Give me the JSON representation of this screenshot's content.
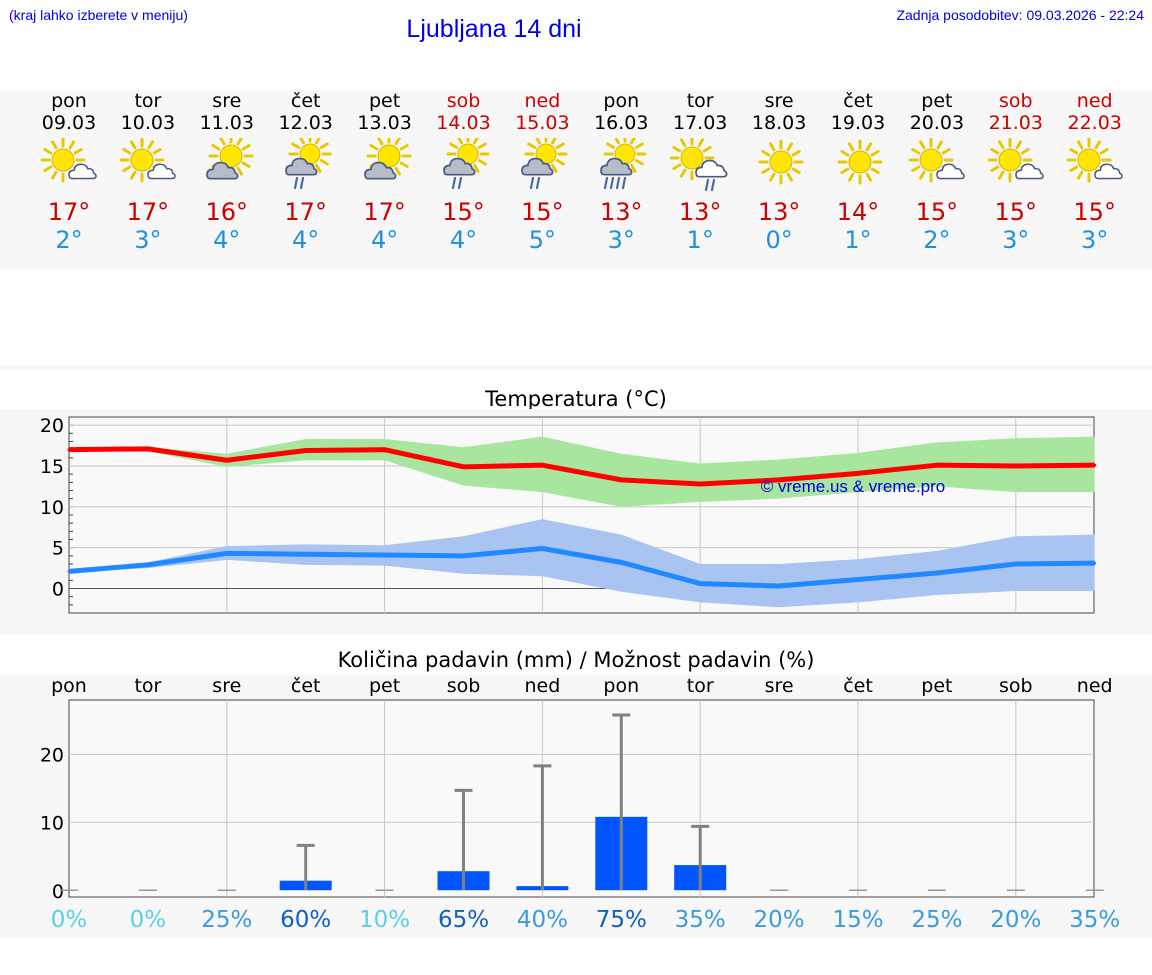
{
  "header": {
    "note_left": "(kraj lahko izberete v meniju)",
    "title": "Ljubljana 14 dni",
    "updated": "Zadnja posodobitev: 09.03.2026 - 22:24"
  },
  "colors": {
    "weekend": "#cc0000",
    "weekday": "#000000",
    "max_temp": "#cc0000",
    "min_temp": "#2090e0",
    "max_line": "#ff0000",
    "max_band": "#a8e6a0",
    "min_line": "#2288ff",
    "min_band": "#aac4f2",
    "precip_bar": "#0055ff",
    "error_bar": "#808080",
    "watermark": "#0000dd"
  },
  "days": [
    {
      "name": "pon",
      "date": "09.03",
      "weekend": false,
      "icon": "sun-cloud-icon",
      "max": "17°",
      "min": "2°"
    },
    {
      "name": "tor",
      "date": "10.03",
      "weekend": false,
      "icon": "sun-cloud-icon",
      "max": "17°",
      "min": "3°"
    },
    {
      "name": "sre",
      "date": "11.03",
      "weekend": false,
      "icon": "cloud-sun-icon",
      "max": "16°",
      "min": "4°"
    },
    {
      "name": "čet",
      "date": "12.03",
      "weekend": false,
      "icon": "cloud-sun-rain-icon",
      "max": "17°",
      "min": "4°"
    },
    {
      "name": "pet",
      "date": "13.03",
      "weekend": false,
      "icon": "cloud-sun-icon",
      "max": "17°",
      "min": "4°"
    },
    {
      "name": "sob",
      "date": "14.03",
      "weekend": true,
      "icon": "cloud-sun-rain-icon",
      "max": "15°",
      "min": "4°"
    },
    {
      "name": "ned",
      "date": "15.03",
      "weekend": true,
      "icon": "cloud-sun-rain-icon",
      "max": "15°",
      "min": "5°"
    },
    {
      "name": "pon",
      "date": "16.03",
      "weekend": false,
      "icon": "cloud-sun-heavy-rain-icon",
      "max": "13°",
      "min": "3°"
    },
    {
      "name": "tor",
      "date": "17.03",
      "weekend": false,
      "icon": "sun-cloud-rain-icon",
      "max": "13°",
      "min": "1°"
    },
    {
      "name": "sre",
      "date": "18.03",
      "weekend": false,
      "icon": "sun-icon",
      "max": "13°",
      "min": "0°"
    },
    {
      "name": "čet",
      "date": "19.03",
      "weekend": false,
      "icon": "sun-icon",
      "max": "14°",
      "min": "1°"
    },
    {
      "name": "pet",
      "date": "20.03",
      "weekend": false,
      "icon": "sun-cloud-icon",
      "max": "15°",
      "min": "2°"
    },
    {
      "name": "sob",
      "date": "21.03",
      "weekend": true,
      "icon": "sun-cloud-icon",
      "max": "15°",
      "min": "3°"
    },
    {
      "name": "ned",
      "date": "22.03",
      "weekend": true,
      "icon": "sun-cloud-icon",
      "max": "15°",
      "min": "3°"
    }
  ],
  "chart_data": [
    {
      "type": "line",
      "title": "Temperatura (°C)",
      "ylim": [
        -3,
        21
      ],
      "yticks": [
        "20",
        "15",
        "10",
        "5",
        "0"
      ],
      "ytick_values": [
        20,
        15,
        10,
        5,
        0
      ],
      "grid": true,
      "watermark": "© vreme.us & vreme.pro",
      "x": [
        "09.03",
        "10.03",
        "11.03",
        "12.03",
        "13.03",
        "14.03",
        "15.03",
        "16.03",
        "17.03",
        "18.03",
        "19.03",
        "20.03",
        "21.03",
        "22.03"
      ],
      "series": [
        {
          "key": "max",
          "values": [
            17.0,
            17.1,
            15.7,
            16.9,
            17.0,
            14.9,
            15.1,
            13.3,
            12.8,
            13.3,
            14.1,
            15.1,
            15.0,
            15.1
          ],
          "band_low": [
            17.0,
            16.8,
            14.9,
            15.7,
            15.7,
            12.6,
            11.8,
            10.0,
            10.6,
            11.0,
            11.8,
            12.5,
            11.8,
            11.8
          ],
          "band_high": [
            17.0,
            17.3,
            16.5,
            18.3,
            18.3,
            17.3,
            18.6,
            16.5,
            15.3,
            15.8,
            16.6,
            17.9,
            18.4,
            18.6
          ]
        },
        {
          "key": "min",
          "values": [
            2.1,
            2.9,
            4.3,
            4.2,
            4.1,
            4.0,
            4.9,
            3.2,
            0.6,
            0.3,
            1.1,
            1.9,
            3.0,
            3.1
          ],
          "band_low": [
            2.1,
            2.5,
            3.5,
            2.9,
            2.8,
            1.8,
            1.5,
            -0.4,
            -1.7,
            -2.3,
            -1.7,
            -0.8,
            -0.3,
            -0.3
          ],
          "band_high": [
            2.1,
            3.2,
            5.2,
            5.4,
            5.3,
            6.4,
            8.5,
            6.6,
            3.0,
            3.0,
            3.6,
            4.6,
            6.4,
            6.6
          ]
        }
      ]
    },
    {
      "type": "bar",
      "title": "Količina padavin (mm) / Možnost padavin (%)",
      "ylim": [
        -1,
        28
      ],
      "yticks": [
        "20",
        "10",
        "0"
      ],
      "ytick_values": [
        20,
        10,
        0
      ],
      "grid": true,
      "categories": [
        "pon",
        "tor",
        "sre",
        "čet",
        "pet",
        "sob",
        "ned",
        "pon",
        "tor",
        "sre",
        "čet",
        "pet",
        "sob",
        "ned"
      ],
      "values": [
        0,
        0,
        0,
        1.4,
        0,
        2.8,
        0.6,
        10.8,
        3.7,
        0,
        0,
        0,
        0,
        0
      ],
      "error_high": [
        0,
        0,
        0,
        6.6,
        0,
        14.7,
        18.3,
        25.8,
        9.4,
        0,
        0,
        0,
        0,
        0
      ],
      "probability": [
        "0%",
        "0%",
        "25%",
        "60%",
        "10%",
        "65%",
        "40%",
        "75%",
        "35%",
        "20%",
        "15%",
        "25%",
        "20%",
        "35%"
      ],
      "probability_values": [
        0,
        0,
        25,
        60,
        10,
        65,
        40,
        75,
        35,
        20,
        15,
        25,
        20,
        35
      ]
    }
  ]
}
